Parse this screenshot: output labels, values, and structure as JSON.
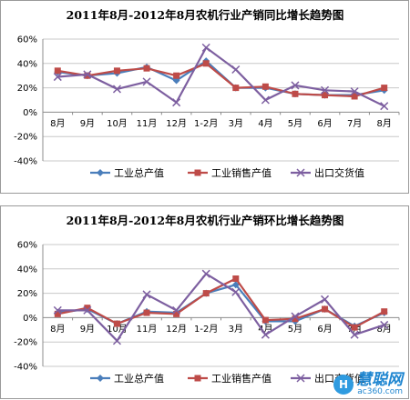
{
  "chart_data": [
    {
      "type": "line",
      "title": "2011年8月-2012年8月农机行业产销同比增长趋势图",
      "categories": [
        "8月",
        "9月",
        "10月",
        "11月",
        "12月",
        "1-2月",
        "3月",
        "4月",
        "5月",
        "6月",
        "7月",
        "8月"
      ],
      "ylim": [
        -40,
        60
      ],
      "yticks": [
        "60%",
        "40%",
        "20%",
        "0%",
        "-20%",
        "-40%"
      ],
      "ytick_values": [
        60,
        40,
        20,
        0,
        -20,
        -40
      ],
      "grid": true,
      "legend_position": "bottom",
      "series": [
        {
          "name": "工业总产值",
          "color": "#4a7ebb",
          "marker": "diamond",
          "values": [
            33,
            30,
            32,
            37,
            26,
            42,
            20,
            20,
            15,
            14,
            14,
            18
          ]
        },
        {
          "name": "工业销售产值",
          "color": "#be4b48",
          "marker": "square",
          "values": [
            34,
            30,
            34,
            36,
            30,
            40,
            20,
            21,
            15,
            14,
            13,
            20
          ]
        },
        {
          "name": "出口交货值",
          "color": "#7d5fa0",
          "marker": "x",
          "values": [
            29,
            31,
            19,
            25,
            8,
            53,
            35,
            10,
            22,
            18,
            17,
            5
          ]
        }
      ]
    },
    {
      "type": "line",
      "title": "2011年8月-2012年8月农机行业产销环比增长趋势图",
      "categories": [
        "8月",
        "9月",
        "10月",
        "11月",
        "12月",
        "1-2月",
        "3月",
        "4月",
        "5月",
        "6月",
        "7月",
        "8月"
      ],
      "ylim": [
        -40,
        60
      ],
      "yticks": [
        "60%",
        "40%",
        "20%",
        "0%",
        "-20%",
        "-40%"
      ],
      "ytick_values": [
        60,
        40,
        20,
        0,
        -20,
        -40
      ],
      "grid": true,
      "legend_position": "bottom",
      "series": [
        {
          "name": "工业总产值",
          "color": "#4a7ebb",
          "marker": "diamond",
          "values": [
            4,
            7,
            -5,
            5,
            4,
            20,
            27,
            -3,
            -3,
            7,
            -7,
            4
          ]
        },
        {
          "name": "工业销售产值",
          "color": "#be4b48",
          "marker": "square",
          "values": [
            3,
            8,
            -5,
            4,
            3,
            20,
            32,
            -2,
            -1,
            7,
            -8,
            5
          ]
        },
        {
          "name": "出口交货值",
          "color": "#7d5fa0",
          "marker": "x",
          "values": [
            6,
            6,
            -19,
            19,
            6,
            36,
            21,
            -14,
            1,
            15,
            -14,
            -6
          ]
        }
      ]
    }
  ],
  "watermark": {
    "logo": "慧聪网",
    "url": "ac360.com",
    "mark": "H"
  }
}
